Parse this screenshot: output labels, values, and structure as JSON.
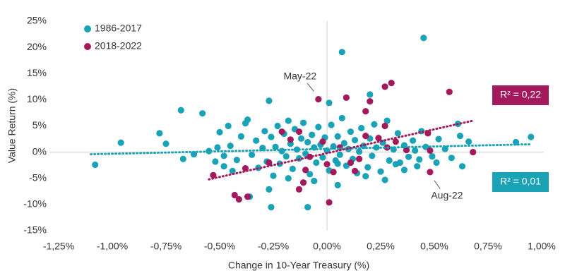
{
  "chart_data": {
    "type": "scatter",
    "x_label": "Change in 10-Year Treasury (%)",
    "y_label": "Value Return (%)",
    "xlim": [
      -1.25,
      1.0
    ],
    "ylim": [
      -15,
      25
    ],
    "xticks": [
      {
        "value": -1.25,
        "label": "-1,25%"
      },
      {
        "value": -1.0,
        "label": "-1,00%"
      },
      {
        "value": -0.75,
        "label": "-0,75%"
      },
      {
        "value": -0.5,
        "label": "-0,50%"
      },
      {
        "value": -0.25,
        "label": "-0,25%"
      },
      {
        "value": 0,
        "label": "0,00%"
      },
      {
        "value": 0.25,
        "label": "0,25%"
      },
      {
        "value": 0.5,
        "label": "0,50%"
      },
      {
        "value": 0.75,
        "label": "0,75%"
      },
      {
        "value": 1.0,
        "label": "1,00%"
      }
    ],
    "yticks": [
      {
        "value": 25,
        "label": "25%"
      },
      {
        "value": 20,
        "label": "20%"
      },
      {
        "value": 15,
        "label": "15%"
      },
      {
        "value": 10,
        "label": "10%"
      },
      {
        "value": 5,
        "label": "5%"
      },
      {
        "value": 0,
        "label": "0%"
      },
      {
        "value": -5,
        "label": "-5%"
      },
      {
        "value": -10,
        "label": "-10%"
      },
      {
        "value": -15,
        "label": "-15%"
      }
    ],
    "legend": "upper left",
    "series": [
      {
        "name": "1986-2017",
        "color": "#1aa3b6",
        "r2_label": "R² = 0,01",
        "trendline": {
          "x": [
            -1.1,
            0.95
          ],
          "y": [
            -0.4,
            1.5
          ]
        },
        "x": [
          0.45,
          0.07,
          -1.08,
          -0.96,
          -0.78,
          -0.75,
          -0.68,
          -0.58,
          -0.62,
          -0.67,
          0.95,
          0.88,
          -0.27,
          -0.26,
          -0.09,
          0.01,
          0.2,
          -0.27,
          -0.36,
          0.05,
          0.61,
          0.62,
          0.63,
          0.66,
          0.51,
          0.42,
          0.36,
          0.32,
          -0.51,
          -0.48,
          -0.45,
          -0.42,
          -0.4,
          -0.38,
          -0.37,
          -0.35,
          -0.33,
          -0.32,
          -0.3,
          -0.29,
          -0.28,
          -0.26,
          -0.25,
          -0.24,
          -0.23,
          -0.22,
          -0.21,
          -0.2,
          -0.19,
          -0.18,
          -0.17,
          -0.16,
          -0.15,
          -0.14,
          -0.13,
          -0.12,
          -0.11,
          -0.1,
          -0.09,
          -0.08,
          -0.07,
          -0.06,
          -0.05,
          -0.04,
          -0.03,
          -0.02,
          -0.01,
          0.0,
          0.01,
          0.02,
          0.03,
          0.04,
          0.05,
          0.06,
          0.07,
          0.08,
          0.09,
          0.1,
          0.11,
          0.12,
          0.13,
          0.14,
          0.15,
          0.16,
          0.17,
          0.19,
          0.2,
          0.21,
          0.22,
          0.23,
          0.25,
          0.26,
          0.28,
          0.29,
          0.31,
          0.33,
          0.34,
          0.36,
          0.38,
          0.4,
          0.41,
          0.43,
          0.44,
          0.46,
          0.49,
          0.52,
          0.55,
          0.58,
          -0.48,
          -0.52,
          -0.55,
          -0.5,
          -0.44,
          -0.46,
          0.27,
          0.18,
          -0.06,
          0.05,
          -0.18
        ],
        "values": [
          21.8,
          19.1,
          -2.4,
          1.8,
          3.6,
          1.6,
          8.0,
          7.4,
          -0.4,
          -1.3,
          2.9,
          1.9,
          9.8,
          -10.5,
          -10.5,
          9.4,
          11.0,
          -7.1,
          -8.5,
          -6.3,
          5.4,
          3.1,
          -2.7,
          2.0,
          -2.0,
          -2.7,
          -3.4,
          -2.3,
          0.9,
          -2.7,
          1.2,
          -1.5,
          3.0,
          5.5,
          6.2,
          -0.5,
          2.2,
          -3.0,
          0.8,
          4.0,
          -1.8,
          2.9,
          -4.5,
          1.0,
          5.0,
          -2.2,
          0.2,
          3.5,
          -0.8,
          6.0,
          1.6,
          -3.2,
          4.4,
          0.5,
          -1.2,
          2.6,
          5.6,
          -0.3,
          1.9,
          -4.2,
          3.3,
          0.9,
          -2.0,
          4.8,
          1.4,
          -1.0,
          2.8,
          0.3,
          -3.5,
          5.2,
          1.1,
          -1.6,
          3.0,
          -0.5,
          6.5,
          1.7,
          -2.6,
          0.6,
          3.9,
          -1.3,
          2.3,
          -4.0,
          0.1,
          4.6,
          1.2,
          -2.9,
          2.6,
          -0.7,
          5.3,
          0.9,
          -3.7,
          1.8,
          6.0,
          -1.6,
          0.5,
          3.6,
          -2.0,
          1.3,
          -0.9,
          2.2,
          0.3,
          -1.4,
          4.0,
          1.0,
          -0.8,
          2.5,
          0.6,
          -1.1,
          -0.7,
          -1.8,
          0.2,
          3.8,
          -3.6,
          5.0,
          -5.3,
          -4.6,
          -5.5,
          -2.2,
          -5.0
        ]
      },
      {
        "name": "2018-2022",
        "color": "#a3195b",
        "r2_label": "R² = 0,22",
        "trendline": {
          "x": [
            -0.55,
            0.68
          ],
          "y": [
            -5.2,
            6.0
          ]
        },
        "x": [
          -0.53,
          -0.43,
          -0.41,
          -0.37,
          -0.38,
          -0.27,
          -0.21,
          -0.13,
          -0.13,
          -0.11,
          -0.1,
          -0.08,
          -0.04,
          0.01,
          0.0,
          0.03,
          0.06,
          0.09,
          0.11,
          0.13,
          0.15,
          0.18,
          0.18,
          0.2,
          0.27,
          0.3,
          0.27,
          0.28,
          0.32,
          0.37,
          0.47,
          0.48,
          0.48,
          0.57,
          0.68,
          0.24,
          -0.02,
          -0.17
        ],
        "values": [
          -4.4,
          -8.2,
          -9.0,
          -8.5,
          -3.1,
          -2.0,
          3.9,
          3.9,
          -7.1,
          -5.8,
          -3.4,
          -0.9,
          10.1,
          -9.6,
          -2.3,
          -3.8,
          0.9,
          10.4,
          -2.0,
          -3.6,
          -1.3,
          7.8,
          3.1,
          9.7,
          12.5,
          13.2,
          5.0,
          0.9,
          2.0,
          0.4,
          3.6,
          0.3,
          -3.8,
          11.5,
          0.0,
          2.7,
          2.0,
          2.4
        ]
      }
    ],
    "annotations": [
      {
        "text": "May-22",
        "x": -0.04,
        "y": 10.1
      },
      {
        "text": "Aug-22",
        "x": 0.48,
        "y": -3.8
      }
    ]
  }
}
